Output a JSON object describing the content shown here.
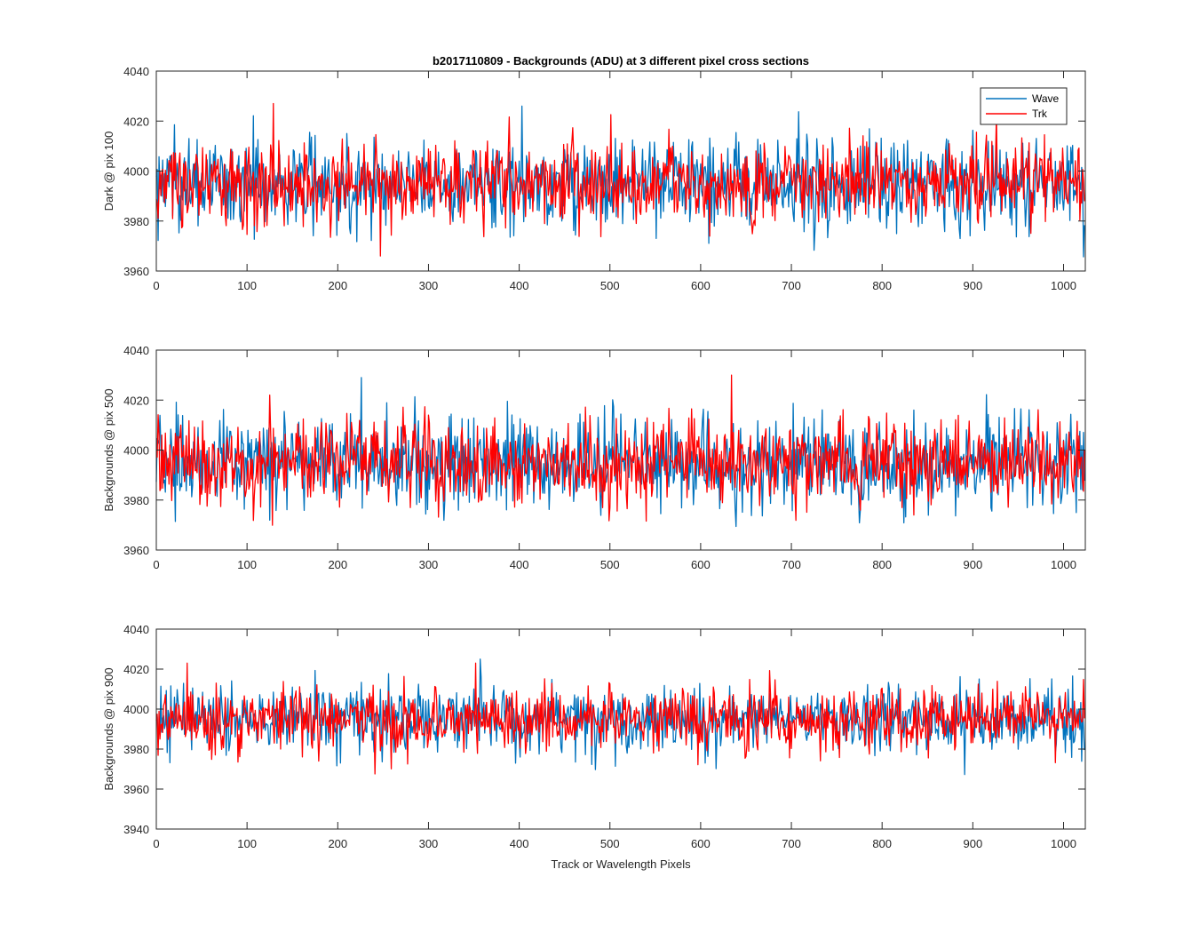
{
  "figure": {
    "title": "b2017110809 - Backgrounds (ADU) at 3 different pixel cross sections",
    "xlabel": "Track or Wavelength Pixels"
  },
  "colors": {
    "wave": "#0072BD",
    "trk": "#FF0000",
    "axis": "#262626"
  },
  "chart_data": [
    {
      "type": "line",
      "ylabel": "Dark @ pix 100",
      "xlim": [
        0,
        1024
      ],
      "ylim": [
        3960,
        4040
      ],
      "xticks": [
        0,
        100,
        200,
        300,
        400,
        500,
        600,
        700,
        800,
        900,
        1000
      ],
      "yticks": [
        3960,
        3980,
        4000,
        4020,
        4040
      ],
      "legend": "top-right",
      "series": [
        {
          "name": "Wave",
          "n_points": 1024,
          "mean": 3995,
          "sd": 9,
          "min": 3964,
          "max": 4026,
          "peak": {
            "x": 403,
            "y": 4026
          }
        },
        {
          "name": "Trk",
          "n_points": 1024,
          "mean": 3995,
          "sd": 8,
          "min": 3966,
          "max": 4027,
          "peak": {
            "x": 129,
            "y": 4027
          }
        }
      ]
    },
    {
      "type": "line",
      "ylabel": "Backgrounds @ pix 500",
      "xlim": [
        0,
        1024
      ],
      "ylim": [
        3960,
        4040
      ],
      "xticks": [
        0,
        100,
        200,
        300,
        400,
        500,
        600,
        700,
        800,
        900,
        1000
      ],
      "yticks": [
        3960,
        3980,
        4000,
        4020,
        4040
      ],
      "series": [
        {
          "name": "Wave",
          "n_points": 1024,
          "mean": 3995,
          "sd": 9,
          "min": 3964,
          "max": 4029,
          "peak": {
            "x": 226,
            "y": 4029
          }
        },
        {
          "name": "Trk",
          "n_points": 1024,
          "mean": 3995,
          "sd": 8,
          "min": 3966,
          "max": 4030,
          "peak": {
            "x": 634,
            "y": 4030
          }
        }
      ]
    },
    {
      "type": "line",
      "ylabel": "Backgrounds @ pix 900",
      "xlim": [
        0,
        1024
      ],
      "ylim": [
        3940,
        4040
      ],
      "xticks": [
        0,
        100,
        200,
        300,
        400,
        500,
        600,
        700,
        800,
        900,
        1000
      ],
      "yticks": [
        3940,
        3960,
        3980,
        4000,
        4020,
        4040
      ],
      "series": [
        {
          "name": "Wave",
          "n_points": 1024,
          "mean": 3995,
          "sd": 8,
          "min": 3959,
          "max": 4025,
          "peak": {
            "x": 357,
            "y": 4025
          }
        },
        {
          "name": "Trk",
          "n_points": 1024,
          "mean": 3995,
          "sd": 8,
          "min": 3963,
          "max": 4023,
          "peak": {
            "x": 34,
            "y": 4023
          }
        }
      ]
    }
  ]
}
